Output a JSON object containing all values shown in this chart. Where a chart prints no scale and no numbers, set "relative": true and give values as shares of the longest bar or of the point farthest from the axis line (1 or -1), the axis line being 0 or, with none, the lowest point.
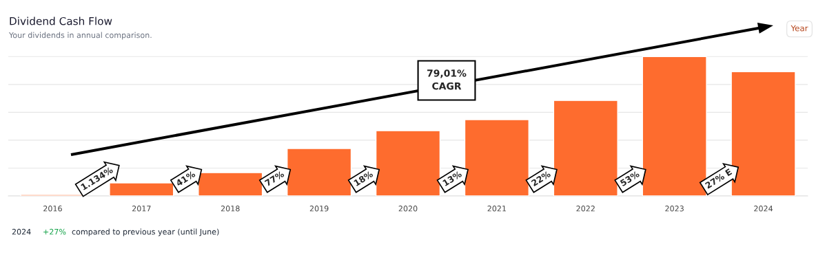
{
  "chart_data": {
    "type": "bar",
    "title": "Dividend Cash Flow",
    "subtitle": "Your dividends in annual comparison.",
    "categories": [
      "2016",
      "2017",
      "2018",
      "2019",
      "2020",
      "2021",
      "2022",
      "2023",
      "2024"
    ],
    "values": [
      0.01,
      0.094,
      0.167,
      0.34,
      0.468,
      0.547,
      0.685,
      1,
      0.892
    ],
    "color": "#fe6c2e",
    "relative": true,
    "grid": "y",
    "annotations": [
      "79,01%\nCAGR",
      "1.134%",
      "41%",
      "77%",
      "18%",
      "13%",
      "22%",
      "53%",
      "27% E",
      "Year",
      "2024",
      "+27%",
      "compared to previous year (until June)"
    ]
  }
}
